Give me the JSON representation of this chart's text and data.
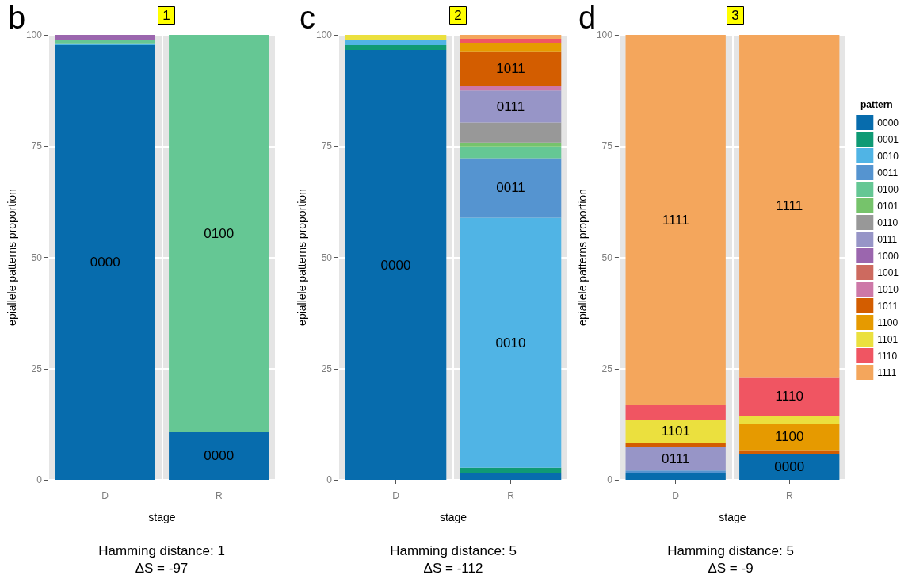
{
  "chart_data": [
    {
      "type": "bar",
      "stacked": true,
      "title": "1",
      "xlabel": "stage",
      "ylabel": "epiallele patterns proportion",
      "categories": [
        "D",
        "R"
      ],
      "ylim": [
        0,
        100
      ],
      "yticks": [
        0,
        25,
        50,
        75,
        100
      ],
      "grid": true,
      "legend": false,
      "annotations": [
        "b",
        "Hamming distance: 1",
        "ΔS = -97"
      ],
      "series": [
        {
          "name": "0000",
          "color": "#076cad",
          "values": [
            97.7,
            10.7
          ]
        },
        {
          "color": "#50b4e5",
          "values": [
            0.4,
            null
          ]
        },
        {
          "name": "0100",
          "color": "#65c794",
          "values": [
            0.7,
            89.3
          ]
        },
        {
          "color": "#9b66ae",
          "values": [
            1.2,
            null
          ]
        }
      ]
    },
    {
      "type": "bar",
      "stacked": true,
      "title": "2",
      "xlabel": "stage",
      "ylabel": "epiallele patterns proportion",
      "categories": [
        "D",
        "R"
      ],
      "ylim": [
        0,
        100
      ],
      "yticks": [
        0,
        25,
        50,
        75,
        100
      ],
      "grid": true,
      "legend": false,
      "annotations": [
        "c",
        "Hamming distance: 5",
        "ΔS = -112"
      ],
      "series": [
        {
          "name": "0000",
          "color": "#076cad",
          "values": [
            96.6,
            1.6
          ]
        },
        {
          "color": "#0f9a74",
          "values": [
            1.1,
            1.1
          ]
        },
        {
          "name": "0010",
          "color": "#50b4e5",
          "values": [
            1.1,
            56.2
          ]
        },
        {
          "name": "0011",
          "color": "#5594d0",
          "values": [
            null,
            13.4
          ]
        },
        {
          "color": "#65c794",
          "values": [
            null,
            2.6
          ]
        },
        {
          "color": "#76c36b",
          "values": [
            null,
            0.9
          ]
        },
        {
          "color": "#989898",
          "values": [
            null,
            4.5
          ]
        },
        {
          "name": "0111",
          "color": "#9795c7",
          "values": [
            null,
            7.2
          ]
        },
        {
          "color": "#cd78a8",
          "values": [
            null,
            0.9
          ]
        },
        {
          "name": "1011",
          "color": "#d35d00",
          "values": [
            null,
            7.9
          ]
        },
        {
          "color": "#e69a00",
          "values": [
            null,
            1.9
          ]
        },
        {
          "color": "#ebe03e",
          "values": [
            1.2,
            null
          ]
        },
        {
          "color": "#f05562",
          "values": [
            null,
            0.9
          ]
        },
        {
          "color": "#f4a65c",
          "values": [
            null,
            0.9
          ]
        }
      ]
    },
    {
      "type": "bar",
      "stacked": true,
      "title": "3",
      "xlabel": "stage",
      "ylabel": "epiallele patterns proportion",
      "categories": [
        "D",
        "R"
      ],
      "ylim": [
        0,
        100
      ],
      "yticks": [
        0,
        25,
        50,
        75,
        100
      ],
      "grid": true,
      "legend": "right",
      "legend_title": "pattern",
      "annotations": [
        "d",
        "Hamming distance: 5",
        "ΔS = -9"
      ],
      "series": [
        {
          "name": "0000",
          "color": "#076cad",
          "values": [
            1.6,
            5.8
          ]
        },
        {
          "name": "0001",
          "color": "#0f9a74",
          "values": [
            null,
            null
          ]
        },
        {
          "name": "0010",
          "color": "#50b4e5",
          "values": [
            null,
            null
          ]
        },
        {
          "name": "0011",
          "color": "#5594d0",
          "values": [
            0.5,
            null
          ]
        },
        {
          "name": "0100",
          "color": "#65c794",
          "values": [
            null,
            null
          ]
        },
        {
          "name": "0101",
          "color": "#76c36b",
          "values": [
            null,
            null
          ]
        },
        {
          "name": "0110",
          "color": "#989898",
          "values": [
            null,
            null
          ]
        },
        {
          "name": "0111",
          "color": "#9795c7",
          "values": [
            5.3,
            null
          ]
        },
        {
          "name": "1000",
          "color": "#9b66ae",
          "values": [
            null,
            null
          ]
        },
        {
          "name": "1001",
          "color": "#cd6a5f",
          "values": [
            null,
            null
          ]
        },
        {
          "name": "1010",
          "color": "#cd78a8",
          "values": [
            null,
            null
          ]
        },
        {
          "name": "1011",
          "color": "#d35d00",
          "values": [
            0.9,
            0.9
          ]
        },
        {
          "name": "1100",
          "color": "#e69a00",
          "values": [
            null,
            5.9
          ]
        },
        {
          "name": "1101",
          "color": "#ebe03e",
          "values": [
            5.2,
            1.8
          ]
        },
        {
          "name": "1110",
          "color": "#f05562",
          "values": [
            3.4,
            8.7
          ]
        },
        {
          "name": "1111",
          "color": "#f4a65c",
          "values": [
            83.1,
            76.9
          ]
        }
      ]
    }
  ]
}
